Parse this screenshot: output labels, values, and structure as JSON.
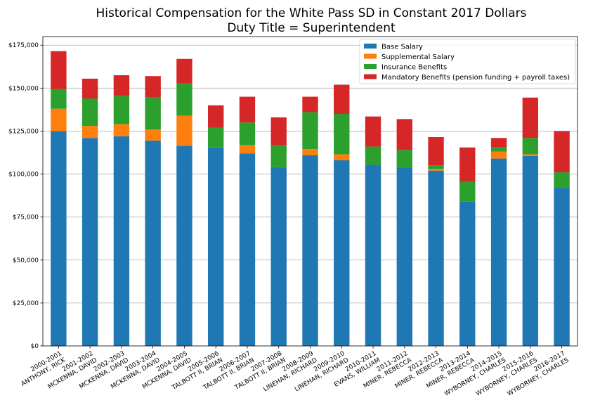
{
  "chart_data": {
    "type": "bar",
    "stacked": true,
    "title": "Historical Compensation for the White Pass SD in Constant 2017 Dollars",
    "subtitle": "Duty Title = Superintendent",
    "xlabel": "",
    "ylabel": "",
    "ylim": [
      0,
      180000
    ],
    "yticks": [
      "$0",
      "$25,000",
      "$50,000",
      "$75,000",
      "$100,000",
      "$125,000",
      "$150,000",
      "$175,000"
    ],
    "ytick_values": [
      0,
      25000,
      50000,
      75000,
      100000,
      125000,
      150000,
      175000
    ],
    "grid": "horizontal",
    "legend_position": "top-right",
    "categories": [
      [
        "2000-2001",
        "ANTHONY, RICK"
      ],
      [
        "2001-2002",
        "MCKENNA, DAVID"
      ],
      [
        "2002-2003",
        "MCKENNA, DAVID"
      ],
      [
        "2003-2004",
        "MCKENNA, DAVID"
      ],
      [
        "2004-2005",
        "MCKENNA, DAVID"
      ],
      [
        "2005-2006",
        "TALBOTT  II, BRIAN"
      ],
      [
        "2006-2007",
        "TALBOTT  II, BRIAN"
      ],
      [
        "2007-2008",
        "TALBOTT  II, BRIAN"
      ],
      [
        "2008-2009",
        "LINEHAN, RICHARD"
      ],
      [
        "2009-2010",
        "LINEHAN, RICHARD"
      ],
      [
        "2010-2011",
        "EVANS, WILLIAM"
      ],
      [
        "2011-2012",
        "MINER, REBECCA"
      ],
      [
        "2012-2013",
        "MINER, REBECCA"
      ],
      [
        "2013-2014",
        "MINER, REBECCA"
      ],
      [
        "2014-2015",
        "WYBORNEY, CHARLES"
      ],
      [
        "2015-2016",
        "WYBORNEY, CHARLES"
      ],
      [
        "2016-2017",
        "WYBORNEY, CHARLES"
      ]
    ],
    "series": [
      {
        "name": "Base Salary",
        "color": "#1f77b4",
        "values": [
          125000,
          121000,
          122000,
          119500,
          116500,
          115500,
          112000,
          104000,
          111000,
          108000,
          105500,
          103500,
          102000,
          84000,
          109000,
          110500,
          92000
        ]
      },
      {
        "name": "Supplemental Salary",
        "color": "#ff7f0e",
        "values": [
          13000,
          7000,
          7000,
          6500,
          17500,
          0,
          5000,
          0,
          3500,
          3500,
          0,
          0,
          1000,
          0,
          4000,
          1000,
          0
        ]
      },
      {
        "name": "Insurance Benefits",
        "color": "#2ca02c",
        "values": [
          11500,
          16000,
          16500,
          18500,
          19000,
          11500,
          13000,
          13000,
          21500,
          23500,
          10500,
          10500,
          2000,
          11500,
          2500,
          9500,
          9000
        ]
      },
      {
        "name": "Mandatory Benefits (pension funding + payroll taxes)",
        "color": "#d62728",
        "values": [
          22000,
          11500,
          12000,
          12500,
          14000,
          13000,
          15000,
          16000,
          9000,
          17000,
          17500,
          18000,
          16500,
          20000,
          5500,
          23500,
          24000
        ]
      }
    ]
  }
}
